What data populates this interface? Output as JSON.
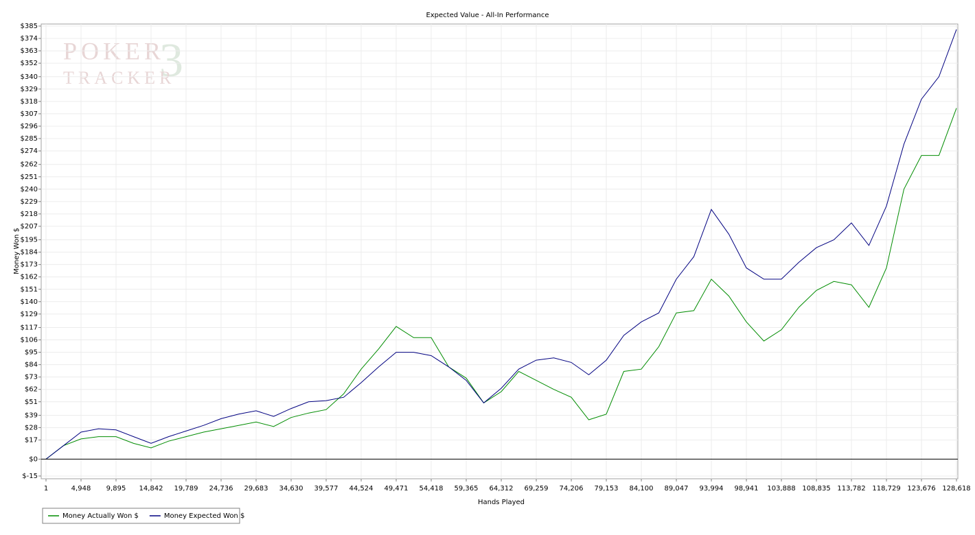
{
  "chart_data": {
    "type": "line",
    "title": "Expected Value - All-In Performance",
    "xlabel": "Hands Played",
    "ylabel": "Money Won $",
    "watermark": [
      "POKER",
      "TRACKER",
      "3"
    ],
    "x": [
      1,
      2474,
      4948,
      7421,
      9895,
      12368,
      14842,
      17315,
      19789,
      22262,
      24736,
      27210,
      29683,
      32157,
      34630,
      37104,
      39577,
      42051,
      44524,
      47000,
      49471,
      51945,
      54418,
      56891,
      59365,
      61838,
      64312,
      66786,
      69259,
      71733,
      74206,
      76680,
      79153,
      81627,
      84100,
      86574,
      89047,
      91520,
      93994,
      96467,
      98941,
      101414,
      103888,
      106361,
      108835,
      111308,
      113782,
      116255,
      118729,
      121202,
      123676,
      126149,
      128618
    ],
    "series": [
      {
        "name": "Money Actually Won $",
        "color": "#008c00",
        "values": [
          0,
          12,
          18,
          20,
          20,
          14,
          10,
          16,
          20,
          24,
          27,
          30,
          33,
          29,
          37,
          41,
          44,
          58,
          80,
          98,
          118,
          108,
          108,
          82,
          72,
          50,
          60,
          78,
          70,
          62,
          55,
          35,
          40,
          78,
          80,
          100,
          130,
          132,
          160,
          145,
          122,
          105,
          115,
          135,
          150,
          158,
          155,
          135,
          170,
          240,
          270,
          270,
          312
        ]
      },
      {
        "name": "Money Expected Won $",
        "color": "#000080",
        "values": [
          0,
          12,
          24,
          27,
          26,
          20,
          14,
          20,
          25,
          30,
          36,
          40,
          43,
          38,
          45,
          51,
          52,
          55,
          68,
          82,
          95,
          95,
          92,
          82,
          70,
          50,
          63,
          80,
          88,
          90,
          86,
          75,
          88,
          110,
          122,
          130,
          160,
          180,
          222,
          200,
          170,
          160,
          160,
          175,
          188,
          195,
          210,
          190,
          225,
          280,
          320,
          340,
          382
        ]
      }
    ],
    "xlim": [
      1,
      128618
    ],
    "xticks": [
      1,
      {
        "value": 4948,
        "label": "4,948"
      },
      {
        "value": 9895,
        "label": "9,895"
      },
      {
        "value": 14842,
        "label": "14,842"
      },
      {
        "value": 19789,
        "label": "19,789"
      },
      {
        "value": 24736,
        "label": "24,736"
      },
      {
        "value": 29683,
        "label": "29,683"
      },
      {
        "value": 34630,
        "label": "34,630"
      },
      {
        "value": 39577,
        "label": "39,577"
      },
      {
        "value": 44524,
        "label": "44,524"
      },
      {
        "value": 49471,
        "label": "49,471"
      },
      {
        "value": 54418,
        "label": "54,418"
      },
      {
        "value": 59365,
        "label": "59,365"
      },
      {
        "value": 64312,
        "label": "64,312"
      },
      {
        "value": 69259,
        "label": "69,259"
      },
      {
        "value": 74206,
        "label": "74,206"
      },
      {
        "value": 79153,
        "label": "79,153"
      },
      {
        "value": 84100,
        "label": "84,100"
      },
      {
        "value": 89047,
        "label": "89,047"
      },
      {
        "value": 93994,
        "label": "93,994"
      },
      {
        "value": 98941,
        "label": "98,941"
      },
      {
        "value": 103888,
        "label": "103,888"
      },
      {
        "value": 108835,
        "label": "108,835"
      },
      {
        "value": 113782,
        "label": "113,782"
      },
      {
        "value": 118729,
        "label": "118,729"
      },
      {
        "value": 123676,
        "label": "123,676"
      },
      {
        "value": 128618,
        "label": "128,618"
      }
    ],
    "ylim": [
      -15,
      385
    ],
    "yticks": [
      {
        "value": -15,
        "label": "$-15"
      },
      {
        "value": 0,
        "label": "$0"
      },
      {
        "value": 17,
        "label": "$17"
      },
      {
        "value": 28,
        "label": "$28"
      },
      {
        "value": 39,
        "label": "$39"
      },
      {
        "value": 51,
        "label": "$51"
      },
      {
        "value": 62,
        "label": "$62"
      },
      {
        "value": 73,
        "label": "$73"
      },
      {
        "value": 84,
        "label": "$84"
      },
      {
        "value": 95,
        "label": "$95"
      },
      {
        "value": 106,
        "label": "$106"
      },
      {
        "value": 117,
        "label": "$117"
      },
      {
        "value": 129,
        "label": "$129"
      },
      {
        "value": 140,
        "label": "$140"
      },
      {
        "value": 151,
        "label": "$151"
      },
      {
        "value": 162,
        "label": "$162"
      },
      {
        "value": 173,
        "label": "$173"
      },
      {
        "value": 184,
        "label": "$184"
      },
      {
        "value": 195,
        "label": "$195"
      },
      {
        "value": 207,
        "label": "$207"
      },
      {
        "value": 218,
        "label": "$218"
      },
      {
        "value": 229,
        "label": "$229"
      },
      {
        "value": 240,
        "label": "$240"
      },
      {
        "value": 251,
        "label": "$251"
      },
      {
        "value": 262,
        "label": "$262"
      },
      {
        "value": 274,
        "label": "$274"
      },
      {
        "value": 285,
        "label": "$285"
      },
      {
        "value": 296,
        "label": "$296"
      },
      {
        "value": 307,
        "label": "$307"
      },
      {
        "value": 318,
        "label": "$318"
      },
      {
        "value": 329,
        "label": "$329"
      },
      {
        "value": 340,
        "label": "$340"
      },
      {
        "value": 352,
        "label": "$352"
      },
      {
        "value": 363,
        "label": "$363"
      },
      {
        "value": 374,
        "label": "$374"
      },
      {
        "value": 385,
        "label": "$385"
      }
    ],
    "grid": true,
    "zero_line": true,
    "legend": "bottom-left"
  }
}
